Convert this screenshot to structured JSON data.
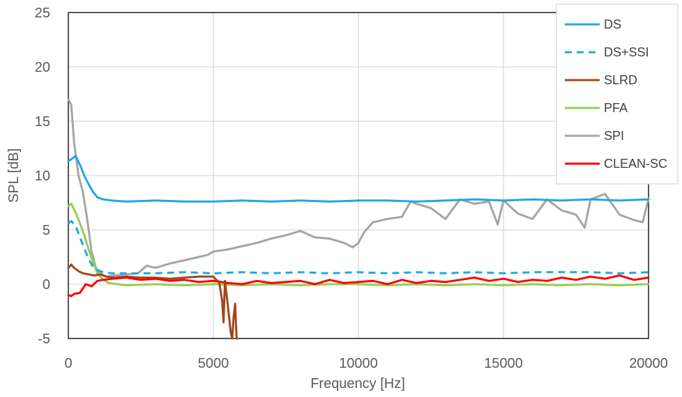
{
  "chart_data": {
    "type": "line",
    "title": "",
    "xlabel": "Frequency [Hz]",
    "ylabel": "SPL [dB]",
    "xlim": [
      0,
      20000
    ],
    "ylim": [
      -5,
      25
    ],
    "x_ticks": [
      0,
      5000,
      10000,
      15000,
      20000
    ],
    "y_ticks": [
      -5,
      0,
      5,
      10,
      15,
      20,
      25
    ],
    "x_tick_labels": [
      "0",
      "5000",
      "10000",
      "15000",
      "20000"
    ],
    "y_tick_labels": [
      "-5",
      "0",
      "5",
      "10",
      "15",
      "20",
      "25"
    ],
    "grid": true,
    "legend_position": "top-right",
    "series": [
      {
        "name": "DS",
        "color": "#1fa9e1",
        "dash": "solid",
        "x": [
          0,
          100,
          250,
          400,
          550,
          700,
          850,
          1000,
          1200,
          1500,
          2000,
          3000,
          4000,
          5000,
          6000,
          7000,
          8000,
          9000,
          10000,
          11000,
          12000,
          13000,
          14000,
          15000,
          16000,
          17000,
          18000,
          19000,
          20000
        ],
        "y": [
          11.3,
          11.5,
          11.8,
          11.0,
          10.0,
          9.2,
          8.5,
          8.0,
          7.8,
          7.7,
          7.6,
          7.7,
          7.6,
          7.6,
          7.7,
          7.6,
          7.7,
          7.6,
          7.7,
          7.7,
          7.6,
          7.7,
          7.8,
          7.7,
          7.8,
          7.7,
          7.8,
          7.7,
          7.8
        ]
      },
      {
        "name": "DS+SSI",
        "color": "#1fa9e1",
        "dash": "dashed",
        "x": [
          0,
          100,
          250,
          400,
          550,
          700,
          850,
          1000,
          1200,
          1500,
          2000,
          3000,
          4000,
          5000,
          6000,
          7000,
          8000,
          9000,
          10000,
          11000,
          12000,
          13000,
          14000,
          15000,
          16000,
          17000,
          18000,
          19000,
          20000
        ],
        "y": [
          5.6,
          5.8,
          5.4,
          4.3,
          3.3,
          2.3,
          1.6,
          1.3,
          1.1,
          1.0,
          1.0,
          1.0,
          1.1,
          1.0,
          1.1,
          1.0,
          1.1,
          1.0,
          1.1,
          1.0,
          1.1,
          1.0,
          1.1,
          1.0,
          1.1,
          1.1,
          1.1,
          1.0,
          1.1
        ]
      },
      {
        "name": "SLRD",
        "color": "#a0481c",
        "dash": "solid",
        "x": [
          0,
          100,
          200,
          350,
          500,
          700,
          900,
          1100,
          1300,
          1600,
          2000,
          2500,
          3000,
          3500,
          4000,
          4500,
          5000,
          5100,
          5200,
          5300,
          5350,
          5400,
          5500,
          5600,
          5650,
          5700,
          5750,
          5800
        ],
        "y": [
          1.5,
          1.8,
          1.5,
          1.2,
          1.0,
          0.9,
          0.8,
          0.9,
          0.7,
          0.6,
          0.7,
          0.6,
          0.6,
          0.5,
          0.6,
          0.7,
          0.7,
          0.4,
          0.2,
          -1.5,
          -3.5,
          0.3,
          -2.0,
          -4.5,
          -5.0,
          -3.0,
          -1.8,
          -5.0
        ]
      },
      {
        "name": "PFA",
        "color": "#92d050",
        "dash": "solid",
        "x": [
          0,
          100,
          250,
          400,
          550,
          700,
          850,
          1000,
          1200,
          1400,
          1700,
          2000,
          3000,
          4000,
          5000,
          6000,
          7000,
          8000,
          9000,
          10000,
          11000,
          12000,
          13000,
          14000,
          15000,
          16000,
          17000,
          18000,
          19000,
          20000
        ],
        "y": [
          7.2,
          7.4,
          6.6,
          5.6,
          4.5,
          3.2,
          2.0,
          1.0,
          0.4,
          0.1,
          0.0,
          -0.1,
          0.0,
          -0.1,
          0.0,
          -0.1,
          0.0,
          -0.1,
          0.0,
          0.0,
          -0.1,
          0.0,
          -0.1,
          0.0,
          -0.1,
          0.0,
          -0.1,
          0.0,
          -0.1,
          0.0
        ]
      },
      {
        "name": "SPI",
        "color": "#a5a5a5",
        "dash": "solid",
        "x": [
          0,
          100,
          200,
          350,
          500,
          650,
          800,
          950,
          1100,
          1300,
          1600,
          2000,
          2400,
          2700,
          3000,
          3500,
          4000,
          4500,
          4800,
          5000,
          5500,
          6000,
          6500,
          7000,
          7500,
          8000,
          8500,
          9000,
          9500,
          9800,
          10000,
          10200,
          10500,
          11000,
          11500,
          11800,
          12000,
          12500,
          13000,
          13500,
          14000,
          14500,
          14800,
          15000,
          15500,
          16000,
          16500,
          17000,
          17500,
          17800,
          18000,
          18500,
          19000,
          19500,
          19800,
          20000
        ],
        "y": [
          17.0,
          16.5,
          13.0,
          10.0,
          8.5,
          6.0,
          3.0,
          1.5,
          1.0,
          0.7,
          0.8,
          0.9,
          1.0,
          1.7,
          1.5,
          1.9,
          2.2,
          2.5,
          2.7,
          3.0,
          3.2,
          3.5,
          3.8,
          4.2,
          4.5,
          4.9,
          4.3,
          4.2,
          3.8,
          3.4,
          3.8,
          4.8,
          5.7,
          6.0,
          6.2,
          7.6,
          7.4,
          7.0,
          6.0,
          7.8,
          7.4,
          7.6,
          5.5,
          7.7,
          6.5,
          6.0,
          7.8,
          6.8,
          6.4,
          5.2,
          7.8,
          8.3,
          6.4,
          5.9,
          5.7,
          7.9
        ]
      },
      {
        "name": "CLEAN-SC",
        "color": "#ff0000",
        "dash": "solid",
        "x": [
          0,
          100,
          200,
          400,
          600,
          800,
          1000,
          1200,
          1500,
          2000,
          2500,
          3000,
          3500,
          4000,
          4500,
          5000,
          5500,
          6000,
          6500,
          7000,
          7500,
          8000,
          8500,
          9000,
          9500,
          10000,
          10500,
          11000,
          11500,
          12000,
          12500,
          13000,
          13500,
          14000,
          14500,
          15000,
          15500,
          16000,
          16500,
          17000,
          17500,
          18000,
          18500,
          19000,
          19500,
          20000
        ],
        "y": [
          -1.0,
          -1.1,
          -0.9,
          -0.8,
          0.0,
          -0.2,
          0.3,
          0.4,
          0.5,
          0.6,
          0.4,
          0.5,
          0.3,
          0.4,
          0.2,
          0.3,
          0.1,
          0.0,
          0.3,
          0.1,
          0.2,
          0.3,
          0.0,
          0.4,
          0.1,
          0.2,
          0.3,
          0.0,
          0.4,
          0.1,
          0.3,
          0.2,
          0.4,
          0.6,
          0.3,
          0.5,
          0.2,
          0.4,
          0.3,
          0.6,
          0.4,
          0.7,
          0.5,
          0.8,
          0.4,
          0.6
        ]
      }
    ]
  }
}
